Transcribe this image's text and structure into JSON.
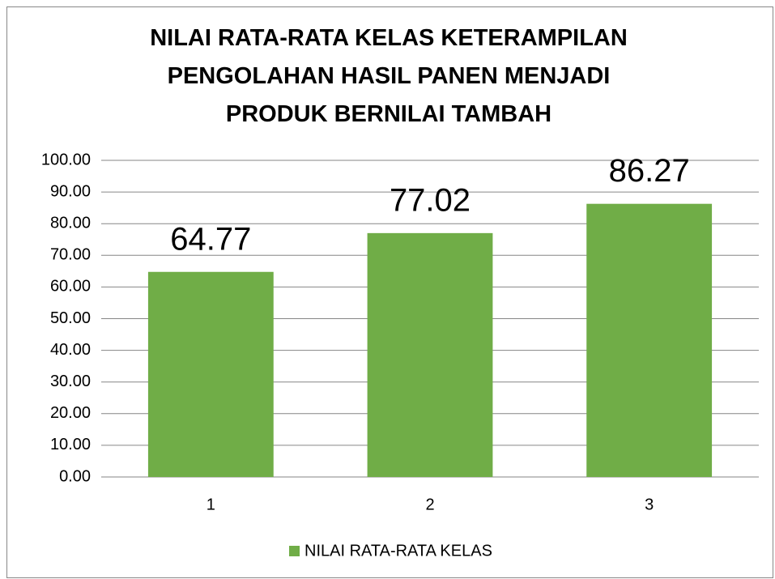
{
  "chart_data": {
    "type": "bar",
    "title": "NILAI RATA-RATA KELAS KETERAMPILAN PENGOLAHAN HASIL PANEN MENJADI PRODUK BERNILAI TAMBAH",
    "categories": [
      "1",
      "2",
      "3"
    ],
    "series": [
      {
        "name": "NILAI RATA-RATA KELAS",
        "color": "#70ad47",
        "values": [
          64.77,
          77.02,
          86.27
        ]
      }
    ],
    "ylim": [
      0,
      100
    ],
    "yticks": [
      {
        "value": 0,
        "label": "0.00"
      },
      {
        "value": 10,
        "label": "10.00"
      },
      {
        "value": 20,
        "label": "20.00"
      },
      {
        "value": 30,
        "label": "30.00"
      },
      {
        "value": 40,
        "label": "40.00"
      },
      {
        "value": 50,
        "label": "50.00"
      },
      {
        "value": 60,
        "label": "60.00"
      },
      {
        "value": 70,
        "label": "70.00"
      },
      {
        "value": 80,
        "label": "80.00"
      },
      {
        "value": 90,
        "label": "90.00"
      },
      {
        "value": 100,
        "label": "100.00"
      }
    ],
    "grid": true,
    "legend": "bottom"
  }
}
